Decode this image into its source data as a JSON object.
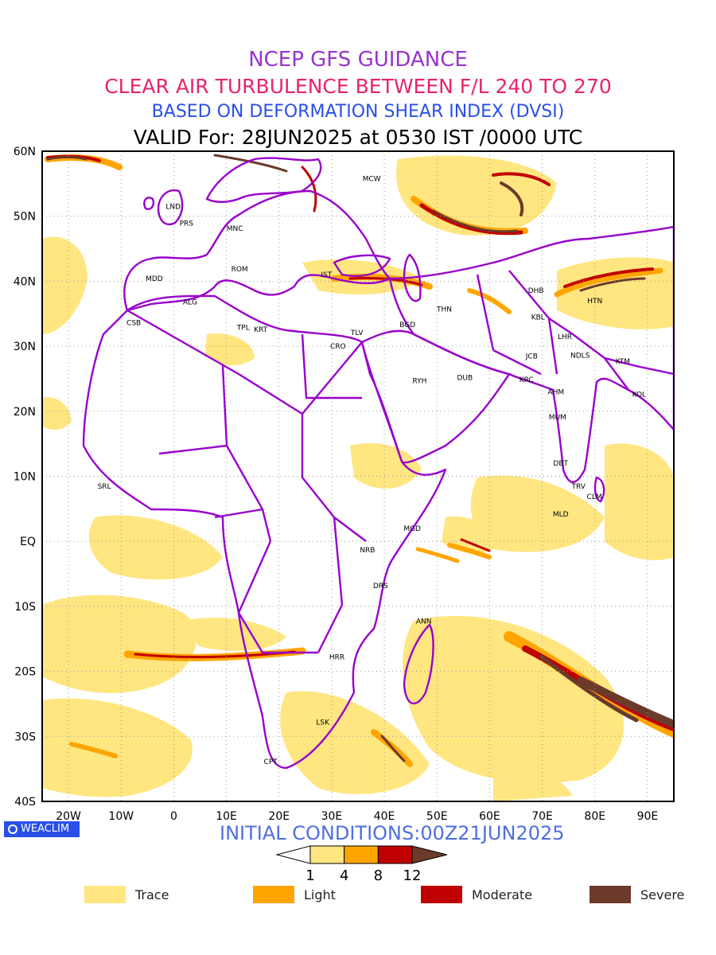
{
  "header": {
    "title1": "NCEP GFS GUIDANCE",
    "title2": "CLEAR AIR TURBULENCE BETWEEN F/L 240 TO 270",
    "title3": "BASED ON DEFORMATION SHEAR INDEX (DVSI)",
    "title4": "VALID For: 28JUN2025 at 0530 IST /0000 UTC",
    "color1": "#9933cc",
    "color2": "#e6246e",
    "color3": "#2a4fe8",
    "color4": "#000000"
  },
  "map": {
    "projection": "lat-lon",
    "lon_range": [
      -25,
      95
    ],
    "lat_range": [
      -40,
      60
    ],
    "lat_labels": [
      "60N",
      "50N",
      "40N",
      "30N",
      "20N",
      "10N",
      "EQ",
      "10S",
      "20S",
      "30S",
      "40S"
    ],
    "lon_labels": [
      "20W",
      "10W",
      "0",
      "10E",
      "20E",
      "30E",
      "40E",
      "50E",
      "60E",
      "70E",
      "80E",
      "90E"
    ],
    "border_color": "#9900cc",
    "grid": true,
    "stations": [
      {
        "code": "MCW",
        "lon": 37.6,
        "lat": 55.8
      },
      {
        "code": "LND",
        "lon": -0.1,
        "lat": 51.5
      },
      {
        "code": "PRS",
        "lon": 2.4,
        "lat": 48.9
      },
      {
        "code": "MNC",
        "lon": 11.6,
        "lat": 48.1
      },
      {
        "code": "MDD",
        "lon": -3.7,
        "lat": 40.4
      },
      {
        "code": "ROM",
        "lon": 12.5,
        "lat": 41.9
      },
      {
        "code": "IST",
        "lon": 29.0,
        "lat": 41.0
      },
      {
        "code": "ALG",
        "lon": 3.1,
        "lat": 36.8
      },
      {
        "code": "CSB",
        "lon": -7.6,
        "lat": 33.6
      },
      {
        "code": "TPL",
        "lon": 13.2,
        "lat": 32.9
      },
      {
        "code": "KRT",
        "lon": 16.5,
        "lat": 32.6
      },
      {
        "code": "CRO",
        "lon": 31.2,
        "lat": 30.0
      },
      {
        "code": "TLV",
        "lon": 34.8,
        "lat": 32.1
      },
      {
        "code": "BGD",
        "lon": 44.4,
        "lat": 33.3
      },
      {
        "code": "THN",
        "lon": 51.4,
        "lat": 35.7
      },
      {
        "code": "RYH",
        "lon": 46.7,
        "lat": 24.7
      },
      {
        "code": "DUB",
        "lon": 55.3,
        "lat": 25.2
      },
      {
        "code": "DHB",
        "lon": 68.8,
        "lat": 38.6
      },
      {
        "code": "KBL",
        "lon": 69.2,
        "lat": 34.5
      },
      {
        "code": "HTN",
        "lon": 80.0,
        "lat": 37.0
      },
      {
        "code": "LHR",
        "lon": 74.3,
        "lat": 31.5
      },
      {
        "code": "JCB",
        "lon": 68.0,
        "lat": 28.5
      },
      {
        "code": "NDLS",
        "lon": 77.2,
        "lat": 28.6
      },
      {
        "code": "KTM",
        "lon": 85.3,
        "lat": 27.7
      },
      {
        "code": "KRC",
        "lon": 67.0,
        "lat": 24.9
      },
      {
        "code": "AHM",
        "lon": 72.6,
        "lat": 23.0
      },
      {
        "code": "KOL",
        "lon": 88.4,
        "lat": 22.6
      },
      {
        "code": "MUM",
        "lon": 72.9,
        "lat": 19.1
      },
      {
        "code": "DBT",
        "lon": 73.5,
        "lat": 12.0
      },
      {
        "code": "TRV",
        "lon": 76.9,
        "lat": 8.5
      },
      {
        "code": "CLM",
        "lon": 79.9,
        "lat": 6.9
      },
      {
        "code": "MLD",
        "lon": 73.5,
        "lat": 4.2
      },
      {
        "code": "SRL",
        "lon": -13.2,
        "lat": 8.5
      },
      {
        "code": "MGD",
        "lon": 45.3,
        "lat": 2.0
      },
      {
        "code": "NRB",
        "lon": 36.8,
        "lat": -1.3
      },
      {
        "code": "DRS",
        "lon": 39.3,
        "lat": -6.8
      },
      {
        "code": "ANN",
        "lon": 47.5,
        "lat": -12.3
      },
      {
        "code": "HRR",
        "lon": 31.0,
        "lat": -17.8
      },
      {
        "code": "LSK",
        "lon": 28.3,
        "lat": -27.8
      },
      {
        "code": "CPT",
        "lon": 18.4,
        "lat": -33.9
      }
    ]
  },
  "colorbar": {
    "ticks": [
      "1",
      "4",
      "8",
      "12"
    ],
    "colors": [
      "#ffe680",
      "#ffa500",
      "#c00000",
      "#6b3a2a"
    ]
  },
  "footer": {
    "initial_conditions": "INITIAL CONDITIONS:00Z21JUN2025",
    "initial_color": "#4f6ee0",
    "badge_text": "WEACLIM",
    "badge_color": "#2a4fe8"
  },
  "legend": [
    {
      "label": "Trace",
      "color": "#ffe680"
    },
    {
      "label": "Light",
      "color": "#ffa500"
    },
    {
      "label": "Moderate",
      "color": "#c00000"
    },
    {
      "label": "Severe",
      "color": "#6b3a2a"
    }
  ]
}
